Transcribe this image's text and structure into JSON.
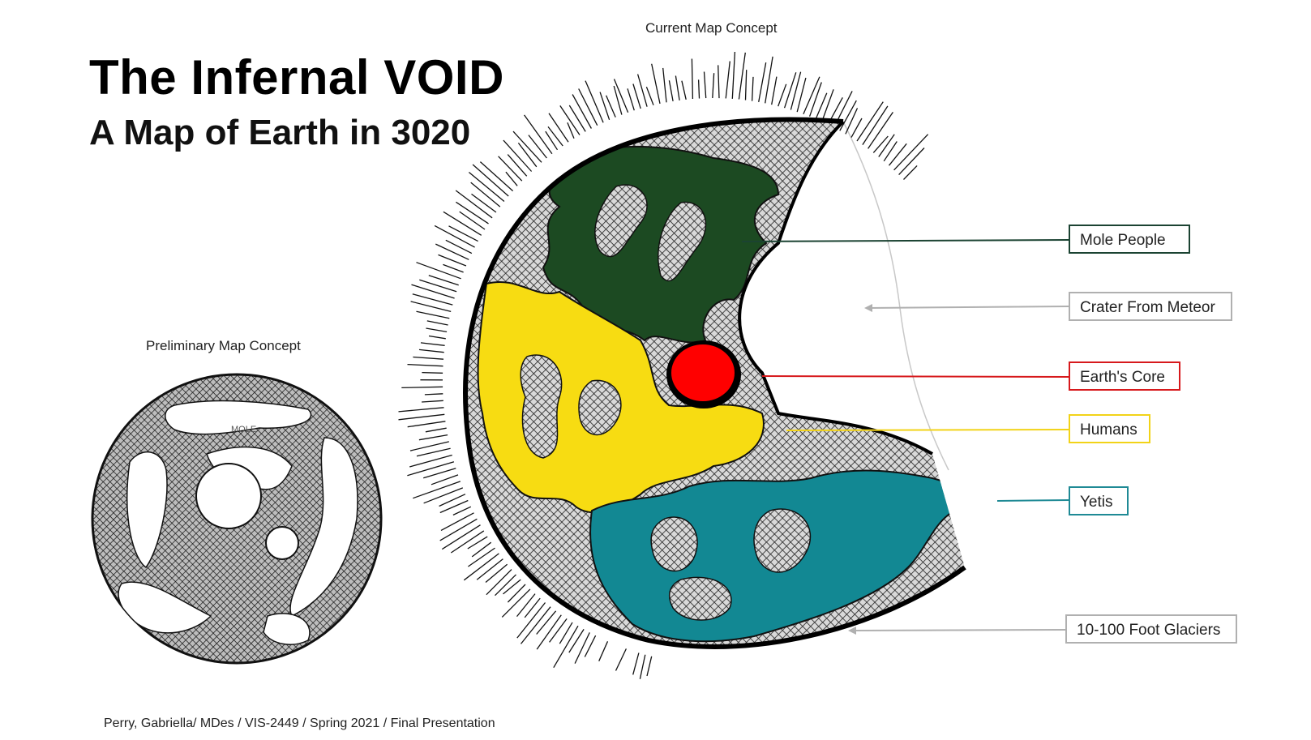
{
  "title": "The Infernal VOID",
  "subtitle": "A Map of Earth in 3020",
  "current_caption": "Current Map Concept",
  "preliminary_caption": "Preliminary Map Concept",
  "preliminary_sketch_text": "MOLE",
  "footer": "Perry, Gabriella/ MDes / VIS-2449 / Spring 2021 / Final Presentation",
  "legend": [
    {
      "label": "Mole People",
      "color": "#1b4332"
    },
    {
      "label": "Crater From Meteor",
      "color": "#b0b0b0"
    },
    {
      "label": "Earth's Core",
      "color": "#d7191c"
    },
    {
      "label": "Humans",
      "color": "#f2d318"
    },
    {
      "label": "Yetis",
      "color": "#1f8a95"
    },
    {
      "label": "10-100 Foot Glaciers",
      "color": "#b0b0b0"
    }
  ],
  "region_colors": {
    "mole_people": "#1c4a22",
    "humans": "#f7dc12",
    "yetis": "#128893",
    "core": "#ff0000",
    "hatch": "#555555"
  }
}
